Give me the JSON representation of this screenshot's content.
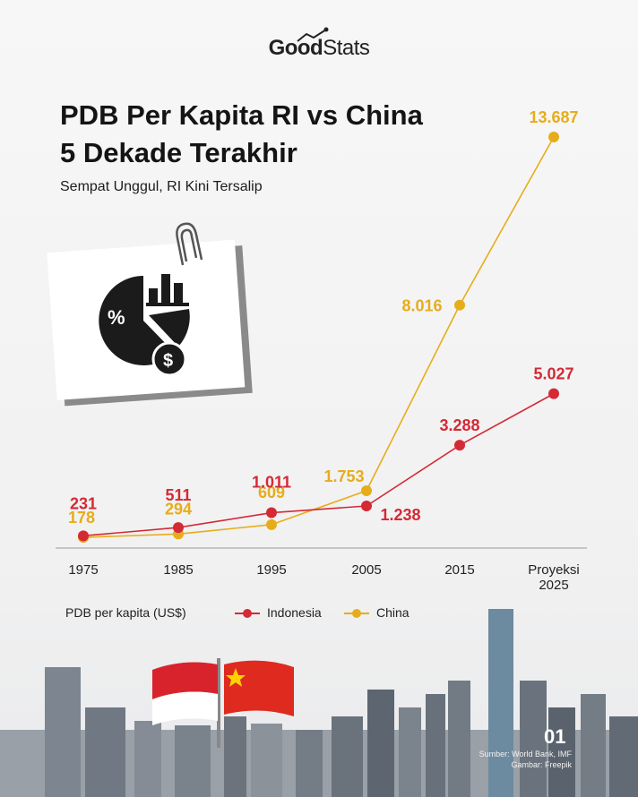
{
  "brand": {
    "part1": "Good",
    "part2": "Stats"
  },
  "title_line1": "PDB Per Kapita RI vs China",
  "title_line2": "5 Dekade Terakhir",
  "subtitle": "Sempat Unggul, RI Kini Tersalip",
  "legend": {
    "title": "PDB per kapita (US$)",
    "indonesia": "Indonesia",
    "china": "China"
  },
  "footer": {
    "page": "01",
    "source_line1": "Sumber: World Bank, IMF",
    "source_line2": "Gambar: Freepik"
  },
  "icons": [
    "paperclip-icon",
    "pie-chart-percent-icon",
    "bar-chart-icon",
    "dollar-coin-icon",
    "indonesia-flag-icon",
    "china-flag-icon"
  ],
  "colors": {
    "indonesia": "#d42a35",
    "china": "#e6ad1b",
    "title": "#141414"
  },
  "chart_data": {
    "type": "line",
    "categories": [
      "1975",
      "1985",
      "1995",
      "2005",
      "2015",
      "Proyeksi 2025"
    ],
    "series": [
      {
        "name": "Indonesia",
        "values": [
          231,
          511,
          1011,
          1238,
          3288,
          5027
        ],
        "labels": [
          "231",
          "511",
          "1.011",
          "1.238",
          "3.288",
          "5.027"
        ],
        "color": "#d42a35"
      },
      {
        "name": "China",
        "values": [
          178,
          294,
          609,
          1753,
          8016,
          13687
        ],
        "labels": [
          "178",
          "294",
          "609",
          "1.753",
          "8.016",
          "13.687"
        ],
        "color": "#e6ad1b"
      }
    ],
    "xlabel": "",
    "ylabel": "PDB per kapita (US$)",
    "ylim": [
      0,
      13687
    ],
    "grid": false,
    "legend_position": "bottom-left"
  }
}
